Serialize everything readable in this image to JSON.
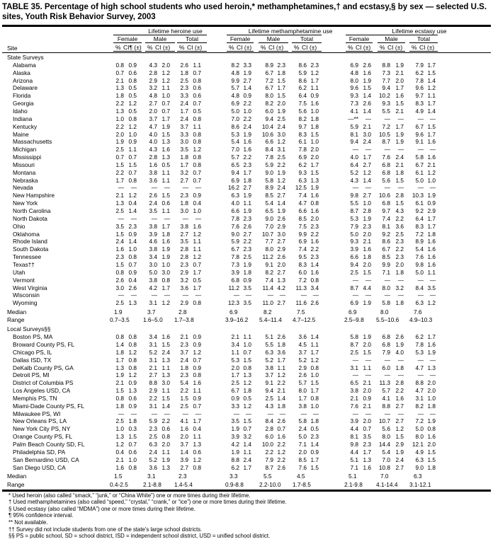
{
  "title": "TABLE 35. Percentage of high school students who used heroin,* methamphetamines,† and ecstasy,§ by sex — selected U.S. sites, Youth Risk Behavior Survey, 2003",
  "headers": {
    "site": "Site",
    "groups": [
      "Lifetime heroine use",
      "Lifetime methamphetamine use",
      "Lifetime ecstasy use"
    ],
    "sexes": [
      "Female",
      "Male",
      "Total"
    ],
    "pct": "%",
    "ci_first": "CI¶ (±)",
    "ci": "CI (±)"
  },
  "sections": [
    {
      "label": "State Surveys",
      "rows": [
        [
          "Alabama",
          "0.8",
          "0.9",
          "4.3",
          "2.0",
          "2.6",
          "1.1",
          "8.2",
          "3.3",
          "8.9",
          "2.3",
          "8.6",
          "2.3",
          "6.9",
          "2.6",
          "8.8",
          "1.9",
          "7.9",
          "1.7"
        ],
        [
          "Alaska",
          "0.7",
          "0.6",
          "2.8",
          "1.2",
          "1.8",
          "0.7",
          "4.8",
          "1.9",
          "6.7",
          "1.8",
          "5.9",
          "1.2",
          "4.8",
          "1.6",
          "7.3",
          "2.1",
          "6.2",
          "1.5"
        ],
        [
          "Arizona",
          "2.1",
          "0.8",
          "2.9",
          "1.2",
          "2.5",
          "0.8",
          "9.9",
          "2.7",
          "7.2",
          "1.5",
          "8.6",
          "1.7",
          "8.0",
          "1.9",
          "7.7",
          "2.0",
          "7.8",
          "1.4"
        ],
        [
          "Delaware",
          "1.3",
          "0.5",
          "3.2",
          "1.1",
          "2.3",
          "0.6",
          "5.7",
          "1.4",
          "6.7",
          "1.7",
          "6.2",
          "1.1",
          "9.6",
          "1.5",
          "9.4",
          "1.7",
          "9.6",
          "1.2"
        ],
        [
          "Florida",
          "1.8",
          "0.5",
          "4.8",
          "1.0",
          "3.3",
          "0.6",
          "4.8",
          "0.9",
          "8.0",
          "1.5",
          "6.4",
          "0.9",
          "9.3",
          "1.4",
          "10.2",
          "1.6",
          "9.7",
          "1.1"
        ],
        [
          "Georgia",
          "2.2",
          "1.2",
          "2.7",
          "0.7",
          "2.4",
          "0.7",
          "6.9",
          "2.2",
          "8.2",
          "2.0",
          "7.5",
          "1.6",
          "7.3",
          "2.6",
          "9.3",
          "1.5",
          "8.3",
          "1.7"
        ],
        [
          "Idaho",
          "1.3",
          "0.5",
          "2.0",
          "0.7",
          "1.7",
          "0.5",
          "5.0",
          "1.0",
          "6.0",
          "1.9",
          "5.6",
          "1.0",
          "4.1",
          "1.4",
          "5.5",
          "2.1",
          "4.9",
          "1.4"
        ],
        [
          "Indiana",
          "1.0",
          "0.8",
          "3.7",
          "1.7",
          "2.4",
          "0.8",
          "7.0",
          "2.2",
          "9.4",
          "2.5",
          "8.2",
          "1.8",
          "—**",
          "—",
          "—",
          "—",
          "—",
          "—"
        ],
        [
          "Kentucky",
          "2.2",
          "1.2",
          "4.7",
          "1.9",
          "3.7",
          "1.1",
          "8.6",
          "2.4",
          "10.4",
          "2.4",
          "9.7",
          "1.8",
          "5.9",
          "2.1",
          "7.2",
          "1.7",
          "6.7",
          "1.5"
        ],
        [
          "Maine",
          "2.0",
          "1.0",
          "4.0",
          "1.5",
          "3.3",
          "0.8",
          "5.3",
          "1.9",
          "10.6",
          "3.0",
          "8.3",
          "1.5",
          "8.1",
          "3.0",
          "10.5",
          "1.9",
          "9.6",
          "1.7"
        ],
        [
          "Massachusetts",
          "1.9",
          "0.9",
          "4.0",
          "1.3",
          "3.0",
          "0.8",
          "5.4",
          "1.6",
          "6.6",
          "1.2",
          "6.1",
          "1.0",
          "9.4",
          "2.4",
          "8.7",
          "1.9",
          "9.1",
          "1.6"
        ],
        [
          "Michigan",
          "2.5",
          "1.1",
          "4.3",
          "1.6",
          "3.5",
          "1.2",
          "7.0",
          "1.6",
          "8.4",
          "3.1",
          "7.8",
          "2.0",
          "—",
          "—",
          "—",
          "—",
          "—",
          "—"
        ],
        [
          "Mississippi",
          "0.7",
          "0.7",
          "2.8",
          "1.3",
          "1.8",
          "0.8",
          "5.7",
          "2.2",
          "7.8",
          "2.5",
          "6.9",
          "2.0",
          "4.0",
          "1.7",
          "7.6",
          "2.4",
          "5.8",
          "1.6"
        ],
        [
          "Missouri",
          "1.5",
          "1.5",
          "1.6",
          "0.5",
          "1.7",
          "0.8",
          "6.5",
          "2.3",
          "5.9",
          "2.2",
          "6.2",
          "1.7",
          "6.4",
          "2.7",
          "6.8",
          "2.1",
          "6.7",
          "2.1"
        ],
        [
          "Montana",
          "2.2",
          "0.7",
          "3.8",
          "1.1",
          "3.2",
          "0.7",
          "9.4",
          "1.7",
          "9.0",
          "1.9",
          "9.3",
          "1.5",
          "5.2",
          "1.2",
          "6.8",
          "1.8",
          "6.1",
          "1.2"
        ],
        [
          "Nebraska",
          "1.7",
          "0.8",
          "3.6",
          "1.1",
          "2.7",
          "0.7",
          "6.9",
          "1.8",
          "5.8",
          "1.2",
          "6.3",
          "1.3",
          "4.3",
          "1.4",
          "5.6",
          "1.5",
          "5.0",
          "1.0"
        ],
        [
          "Nevada",
          "—",
          "—",
          "—",
          "—",
          "—",
          "—",
          "16.2",
          "2.7",
          "8.9",
          "2.4",
          "12.5",
          "1.9",
          "—",
          "—",
          "—",
          "—",
          "—",
          "—"
        ],
        [
          "New Hampshire",
          "2.1",
          "1.2",
          "2.6",
          "1.5",
          "2.3",
          "0.9",
          "6.3",
          "1.9",
          "8.5",
          "2.7",
          "7.4",
          "1.6",
          "9.8",
          "2.7",
          "10.6",
          "2.8",
          "10.3",
          "1.9"
        ],
        [
          "New York",
          "1.3",
          "0.4",
          "2.4",
          "0.6",
          "1.8",
          "0.4",
          "4.0",
          "1.1",
          "5.4",
          "1.4",
          "4.7",
          "0.8",
          "5.5",
          "1.0",
          "6.8",
          "1.5",
          "6.1",
          "0.9"
        ],
        [
          "North Carolina",
          "2.5",
          "1.4",
          "3.5",
          "1.1",
          "3.0",
          "1.0",
          "6.6",
          "1.9",
          "6.5",
          "1.9",
          "6.6",
          "1.6",
          "8.7",
          "2.8",
          "9.7",
          "4.3",
          "9.2",
          "2.9"
        ],
        [
          "North Dakota",
          "—",
          "—",
          "—",
          "—",
          "—",
          "—",
          "7.8",
          "2.3",
          "9.0",
          "2.6",
          "8.5",
          "2.0",
          "5.3",
          "1.9",
          "7.4",
          "2.2",
          "6.4",
          "1.7"
        ],
        [
          "Ohio",
          "3.5",
          "2.3",
          "3.8",
          "1.7",
          "3.8",
          "1.6",
          "7.6",
          "2.6",
          "7.0",
          "2.9",
          "7.5",
          "2.3",
          "7.9",
          "2.3",
          "8.1",
          "3.6",
          "8.3",
          "1.7"
        ],
        [
          "Oklahoma",
          "1.5",
          "0.9",
          "3.9",
          "1.8",
          "2.7",
          "1.2",
          "9.0",
          "2.7",
          "10.7",
          "3.0",
          "9.9",
          "2.2",
          "5.0",
          "2.0",
          "9.2",
          "2.5",
          "7.2",
          "1.8"
        ],
        [
          "Rhode Island",
          "2.4",
          "1.4",
          "4.6",
          "1.6",
          "3.5",
          "1.1",
          "5.9",
          "2.2",
          "7.7",
          "2.7",
          "6.9",
          "1.6",
          "9.3",
          "2.1",
          "8.6",
          "2.3",
          "8.9",
          "1.6"
        ],
        [
          "South Dakota",
          "1.6",
          "1.0",
          "3.8",
          "1.9",
          "2.8",
          "1.1",
          "6.7",
          "2.3",
          "8.0",
          "2.9",
          "7.4",
          "2.2",
          "3.9",
          "1.6",
          "6.7",
          "2.2",
          "5.4",
          "1.6"
        ],
        [
          "Tennessee",
          "2.3",
          "0.8",
          "3.4",
          "1.9",
          "2.8",
          "1.2",
          "7.8",
          "2.5",
          "11.2",
          "2.6",
          "9.5",
          "2.3",
          "6.6",
          "1.8",
          "8.5",
          "2.3",
          "7.6",
          "1.6"
        ],
        [
          "Texas††",
          "1.5",
          "0.7",
          "3.0",
          "1.0",
          "2.3",
          "0.7",
          "7.3",
          "1.9",
          "9.1",
          "2.0",
          "8.3",
          "1.4",
          "9.4",
          "2.0",
          "9.9",
          "2.0",
          "9.8",
          "1.6"
        ],
        [
          "Utah",
          "0.8",
          "0.9",
          "5.0",
          "3.0",
          "2.9",
          "1.7",
          "3.9",
          "1.8",
          "8.2",
          "2.7",
          "6.0",
          "1.6",
          "2.5",
          "1.5",
          "7.1",
          "1.8",
          "5.0",
          "1.1"
        ],
        [
          "Vermont",
          "2.6",
          "0.4",
          "3.8",
          "0.8",
          "3.2",
          "0.5",
          "6.8",
          "0.9",
          "7.4",
          "1.3",
          "7.2",
          "0.8",
          "—",
          "—",
          "—",
          "—",
          "—",
          "—"
        ],
        [
          "West Virginia",
          "3.0",
          "2.6",
          "4.2",
          "1.7",
          "3.6",
          "1.7",
          "11.2",
          "3.5",
          "11.4",
          "4.2",
          "11.3",
          "3.4",
          "8.7",
          "4.4",
          "8.0",
          "3.2",
          "8.4",
          "3.5"
        ],
        [
          "Wisconsin",
          "—",
          "—",
          "—",
          "—",
          "—",
          "—",
          "—",
          "—",
          "—",
          "—",
          "—",
          "—",
          "—",
          "—",
          "—",
          "—",
          "—",
          "—"
        ],
        [
          "Wyoming",
          "2.5",
          "1.3",
          "3.1",
          "1.2",
          "2.9",
          "0.8",
          "12.3",
          "3.5",
          "11.0",
          "2.7",
          "11.6",
          "2.6",
          "6.9",
          "1.9",
          "5.8",
          "1.8",
          "6.3",
          "1.2"
        ]
      ],
      "median": [
        "Median",
        "1.9",
        "3.7",
        "2.8",
        "6.9",
        "8.2",
        "7.5",
        "6.9",
        "8.0",
        "7.6"
      ],
      "range": [
        "Range",
        "0.7–3.5",
        "1.6–5.0",
        "1.7–3.8",
        "3.9–16.2",
        "5.4–11.4",
        "4.7–12.5",
        "2.5–9.8",
        "5.5–10.6",
        "4.9–10.3"
      ]
    },
    {
      "label": "Local Surveys§§",
      "rows": [
        [
          "Boston PS, MA",
          "0.8",
          "0.8",
          "3.4",
          "1.6",
          "2.1",
          "0.9",
          "2.1",
          "1.1",
          "5.1",
          "2.6",
          "3.6",
          "1.4",
          "5.8",
          "1.9",
          "6.8",
          "2.6",
          "6.2",
          "1.7"
        ],
        [
          "Broward County PS, FL",
          "1.4",
          "0.8",
          "3.1",
          "1.5",
          "2.3",
          "0.9",
          "3.4",
          "1.0",
          "5.5",
          "1.8",
          "4.5",
          "1.1",
          "8.7",
          "2.0",
          "6.8",
          "1.9",
          "7.8",
          "1.6"
        ],
        [
          "Chicago PS, IL",
          "1.8",
          "1.2",
          "5.2",
          "2.4",
          "3.7",
          "1.2",
          "1.1",
          "0.7",
          "6.3",
          "3.6",
          "3.7",
          "1.7",
          "2.5",
          "1.5",
          "7.9",
          "4.0",
          "5.3",
          "1.9"
        ],
        [
          "Dallas ISD, TX",
          "1.7",
          "0.8",
          "3.1",
          "1.3",
          "2.4",
          "0.7",
          "5.3",
          "1.5",
          "5.2",
          "1.7",
          "5.2",
          "1.2",
          "—",
          "—",
          "—",
          "—",
          "—",
          "—"
        ],
        [
          "DeKalb County PS, GA",
          "1.3",
          "0.8",
          "2.1",
          "1.1",
          "1.8",
          "0.9",
          "2.0",
          "0.8",
          "3.8",
          "1.1",
          "2.9",
          "0.8",
          "3.1",
          "1.1",
          "6.0",
          "1.8",
          "4.7",
          "1.3"
        ],
        [
          "Detroit PS, MI",
          "1.9",
          "1.2",
          "2.7",
          "1.3",
          "2.3",
          "0.8",
          "1.7",
          "1.3",
          "3.7",
          "1.2",
          "2.6",
          "1.0",
          "—",
          "—",
          "—",
          "—",
          "—",
          "—"
        ],
        [
          "District of Columbia PS",
          "2.1",
          "0.9",
          "8.8",
          "3.0",
          "5.4",
          "1.6",
          "2.5",
          "1.2",
          "9.1",
          "2.2",
          "5.7",
          "1.5",
          "6.5",
          "2.1",
          "11.3",
          "2.8",
          "8.8",
          "2.0"
        ],
        [
          "Los Angeles USD, CA",
          "1.5",
          "1.3",
          "2.9",
          "1.1",
          "2.2",
          "1.1",
          "6.7",
          "1.8",
          "9.4",
          "2.1",
          "8.0",
          "1.7",
          "3.8",
          "2.0",
          "5.7",
          "2.2",
          "4.7",
          "2.0"
        ],
        [
          "Memphis PS, TN",
          "0.8",
          "0.6",
          "2.2",
          "1.5",
          "1.5",
          "0.9",
          "0.9",
          "0.5",
          "2.5",
          "1.4",
          "1.7",
          "0.8",
          "2.1",
          "0.9",
          "4.1",
          "1.6",
          "3.1",
          "1.0"
        ],
        [
          "Miami-Dade County PS, FL",
          "1.8",
          "0.9",
          "3.1",
          "1.4",
          "2.5",
          "0.7",
          "3.3",
          "1.2",
          "4.3",
          "1.8",
          "3.8",
          "1.0",
          "7.6",
          "2.1",
          "8.8",
          "2.7",
          "8.2",
          "1.8"
        ],
        [
          "Milwaukee PS, WI",
          "—",
          "—",
          "—",
          "—",
          "—",
          "—",
          "—",
          "—",
          "—",
          "—",
          "—",
          "—",
          "—",
          "—",
          "—",
          "—",
          "—",
          "—"
        ],
        [
          "New Orleans PS, LA",
          "2.5",
          "1.8",
          "5.9",
          "2.2",
          "4.1",
          "1.7",
          "3.5",
          "1.5",
          "8.4",
          "2.6",
          "5.8",
          "1.8",
          "3.9",
          "2.0",
          "10.7",
          "2.7",
          "7.2",
          "1.9"
        ],
        [
          "New York City PS, NY",
          "1.0",
          "0.3",
          "2.3",
          "0.6",
          "1.6",
          "0.4",
          "1.9",
          "0.7",
          "2.8",
          "0.7",
          "2.4",
          "0.5",
          "4.4",
          "0.7",
          "5.6",
          "1.2",
          "5.0",
          "0.8"
        ],
        [
          "Orange County PS, FL",
          "1.3",
          "1.5",
          "2.5",
          "0.8",
          "2.0",
          "1.1",
          "3.9",
          "3.2",
          "6.0",
          "1.6",
          "5.0",
          "2.3",
          "8.1",
          "3.5",
          "8.0",
          "1.5",
          "8.0",
          "1.6"
        ],
        [
          "Palm Beach County SD, FL",
          "1.2",
          "0.7",
          "6.3",
          "2.0",
          "3.7",
          "1.3",
          "4.2",
          "1.4",
          "10.0",
          "2.2",
          "7.1",
          "1.4",
          "9.8",
          "2.3",
          "14.4",
          "2.9",
          "12.1",
          "2.0"
        ],
        [
          "Philadelphia SD, PA",
          "0.4",
          "0.6",
          "2.4",
          "1.1",
          "1.4",
          "0.6",
          "1.9",
          "1.1",
          "2.2",
          "1.2",
          "2.0",
          "0.9",
          "4.4",
          "1.7",
          "5.4",
          "1.9",
          "4.9",
          "1.5"
        ],
        [
          "San Bernardino USD, CA",
          "2.1",
          "1.0",
          "5.2",
          "1.9",
          "3.9",
          "1.2",
          "8.8",
          "2.4",
          "7.9",
          "2.2",
          "8.5",
          "1.7",
          "5.1",
          "1.3",
          "7.0",
          "2.4",
          "6.3",
          "1.5"
        ],
        [
          "San Diego USD, CA",
          "1.6",
          "0.8",
          "3.6",
          "1.3",
          "2.7",
          "0.8",
          "6.2",
          "1.7",
          "8.7",
          "2.6",
          "7.6",
          "1.5",
          "7.1",
          "1.6",
          "10.8",
          "2.7",
          "9.0",
          "1.8"
        ]
      ],
      "median": [
        "Median",
        "1.5",
        "3.1",
        "2.3",
        "3.3",
        "5.5",
        "4.5",
        "5.1",
        "7.0",
        "6.3"
      ],
      "range": [
        "Range",
        "0.4-2.5",
        "2.1-8.8",
        "1.4-5.4",
        "0.9-8.8",
        "2.2-10.0",
        "1.7-8.5",
        "2.1-9.8",
        "4.1-14.4",
        "3.1-12.1"
      ]
    }
  ],
  "footnotes": [
    "* Used heroin (also called “smack,” “junk,” or “China White”) one or more times during their lifetime.",
    "† Used methamphetamines (also called “speed,” “crystal,” “crank,” or “ice”) one or more times during their lifetime.",
    "§ Used ecstasy (also called “MDMA”) one or more times during their lifetime.",
    "¶ 95% confidence interval.",
    "** Not available.",
    "†† Survey did not include students from one of the state's large school districts.",
    "§§ PS = public school, SD = school district, ISD = independent school district, USD = unified school district."
  ]
}
